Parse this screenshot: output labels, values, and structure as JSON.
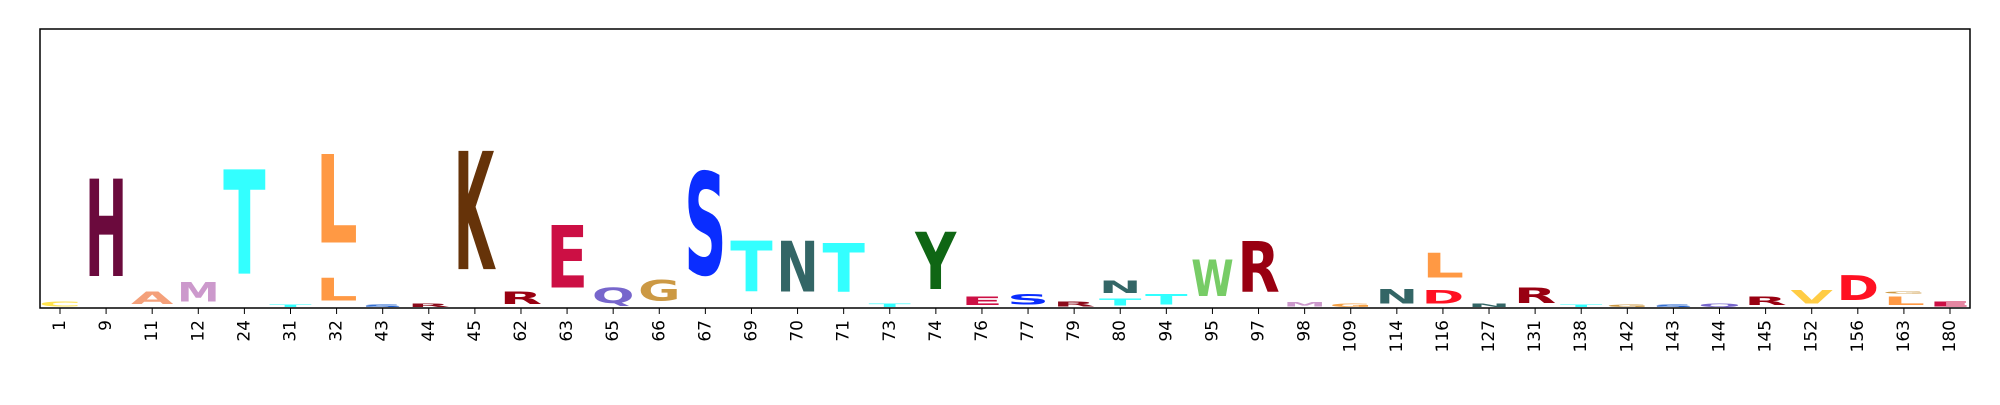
{
  "chart_data": {
    "type": "sequence-logo",
    "title": "",
    "xlabel": "",
    "ylabel": "",
    "ylim": [
      0,
      1.0
    ],
    "grid": false,
    "legend": "none",
    "positions": [
      "1",
      "9",
      "11",
      "12",
      "24",
      "31",
      "32",
      "43",
      "44",
      "45",
      "62",
      "63",
      "65",
      "66",
      "67",
      "69",
      "70",
      "71",
      "73",
      "74",
      "76",
      "77",
      "79",
      "80",
      "94",
      "95",
      "97",
      "98",
      "109",
      "114",
      "116",
      "127",
      "131",
      "138",
      "142",
      "143",
      "144",
      "145",
      "152",
      "156",
      "163",
      "180"
    ],
    "stacks": [
      [
        {
          "letter": "C",
          "height": 0.03,
          "color": "#ffe34d"
        }
      ],
      [
        {
          "letter": "H",
          "height": 0.56,
          "color": "#6b0a3d"
        }
      ],
      [
        {
          "letter": "A",
          "height": 0.07,
          "color": "#f4a07a"
        }
      ],
      [
        {
          "letter": "M",
          "height": 0.11,
          "color": "#cc99cc"
        }
      ],
      [
        {
          "letter": "T",
          "height": 0.6,
          "color": "#33ffff"
        }
      ],
      [
        {
          "letter": "T",
          "height": 0.015,
          "color": "#33ffff"
        }
      ],
      [
        {
          "letter": "L",
          "height": 0.13,
          "color": "#ff9944"
        },
        {
          "letter": "L",
          "height": 0.51,
          "color": "#ff9944"
        }
      ],
      [
        {
          "letter": "S",
          "height": 0.015,
          "color": "#1a5ccc"
        }
      ],
      [
        {
          "letter": "R",
          "height": 0.02,
          "color": "#8b0a1a"
        }
      ],
      [
        {
          "letter": "K",
          "height": 0.68,
          "color": "#663309"
        }
      ],
      [
        {
          "letter": "R",
          "height": 0.07,
          "color": "#990011"
        }
      ],
      [
        {
          "letter": "E",
          "height": 0.36,
          "color": "#cc0f44"
        }
      ],
      [
        {
          "letter": "Q",
          "height": 0.09,
          "color": "#7766cc"
        }
      ],
      [
        {
          "letter": "G",
          "height": 0.12,
          "color": "#cc9944"
        }
      ],
      [
        {
          "letter": "S",
          "height": 0.59,
          "color": "#0a2dff"
        }
      ],
      [
        {
          "letter": "T",
          "height": 0.29,
          "color": "#33ffff"
        }
      ],
      [
        {
          "letter": "N",
          "height": 0.29,
          "color": "#336666"
        }
      ],
      [
        {
          "letter": "T",
          "height": 0.28,
          "color": "#33ffff"
        }
      ],
      [
        {
          "letter": "T",
          "height": 0.02,
          "color": "#33ffff"
        }
      ],
      [
        {
          "letter": "Y",
          "height": 0.33,
          "color": "#0f6614"
        }
      ],
      [
        {
          "letter": "E",
          "height": 0.05,
          "color": "#cc0f44"
        }
      ],
      [
        {
          "letter": "S",
          "height": 0.06,
          "color": "#0a2dff"
        }
      ],
      [
        {
          "letter": "R",
          "height": 0.03,
          "color": "#8b0a1a"
        }
      ],
      [
        {
          "letter": "T",
          "height": 0.04,
          "color": "#33ffff"
        },
        {
          "letter": "N",
          "height": 0.07,
          "color": "#336666"
        }
      ],
      [
        {
          "letter": "T",
          "height": 0.06,
          "color": "#33ffff"
        }
      ],
      [
        {
          "letter": "W",
          "height": 0.21,
          "color": "#77cc66"
        }
      ],
      [
        {
          "letter": "R",
          "height": 0.29,
          "color": "#990011"
        }
      ],
      [
        {
          "letter": "M",
          "height": 0.025,
          "color": "#cc99cc"
        }
      ],
      [
        {
          "letter": "G",
          "height": 0.02,
          "color": "#f4a044"
        }
      ],
      [
        {
          "letter": "N",
          "height": 0.08,
          "color": "#336666"
        }
      ],
      [
        {
          "letter": "D",
          "height": 0.08,
          "color": "#ff1122"
        },
        {
          "letter": "L",
          "height": 0.14,
          "color": "#ff9944"
        }
      ],
      [
        {
          "letter": "N",
          "height": 0.02,
          "color": "#336666"
        }
      ],
      [
        {
          "letter": "R",
          "height": 0.09,
          "color": "#990011"
        }
      ],
      [
        {
          "letter": "T",
          "height": 0.015,
          "color": "#33ffff"
        }
      ],
      [
        {
          "letter": "G",
          "height": 0.015,
          "color": "#cc9944"
        }
      ],
      [
        {
          "letter": "S",
          "height": 0.015,
          "color": "#1a5ccc"
        }
      ],
      [
        {
          "letter": "Q",
          "height": 0.02,
          "color": "#7766cc"
        }
      ],
      [
        {
          "letter": "R",
          "height": 0.05,
          "color": "#990011"
        }
      ],
      [
        {
          "letter": "V",
          "height": 0.08,
          "color": "#ffcc44"
        }
      ],
      [
        {
          "letter": "D",
          "height": 0.14,
          "color": "#ff1122"
        }
      ],
      [
        {
          "letter": "L",
          "height": 0.05,
          "color": "#ff9944"
        },
        {
          "letter": "G",
          "height": 0.01,
          "color": "#cc9944"
        }
      ],
      [
        {
          "letter": "E",
          "height": 0.03,
          "color": "#cc0f44"
        }
      ]
    ]
  }
}
